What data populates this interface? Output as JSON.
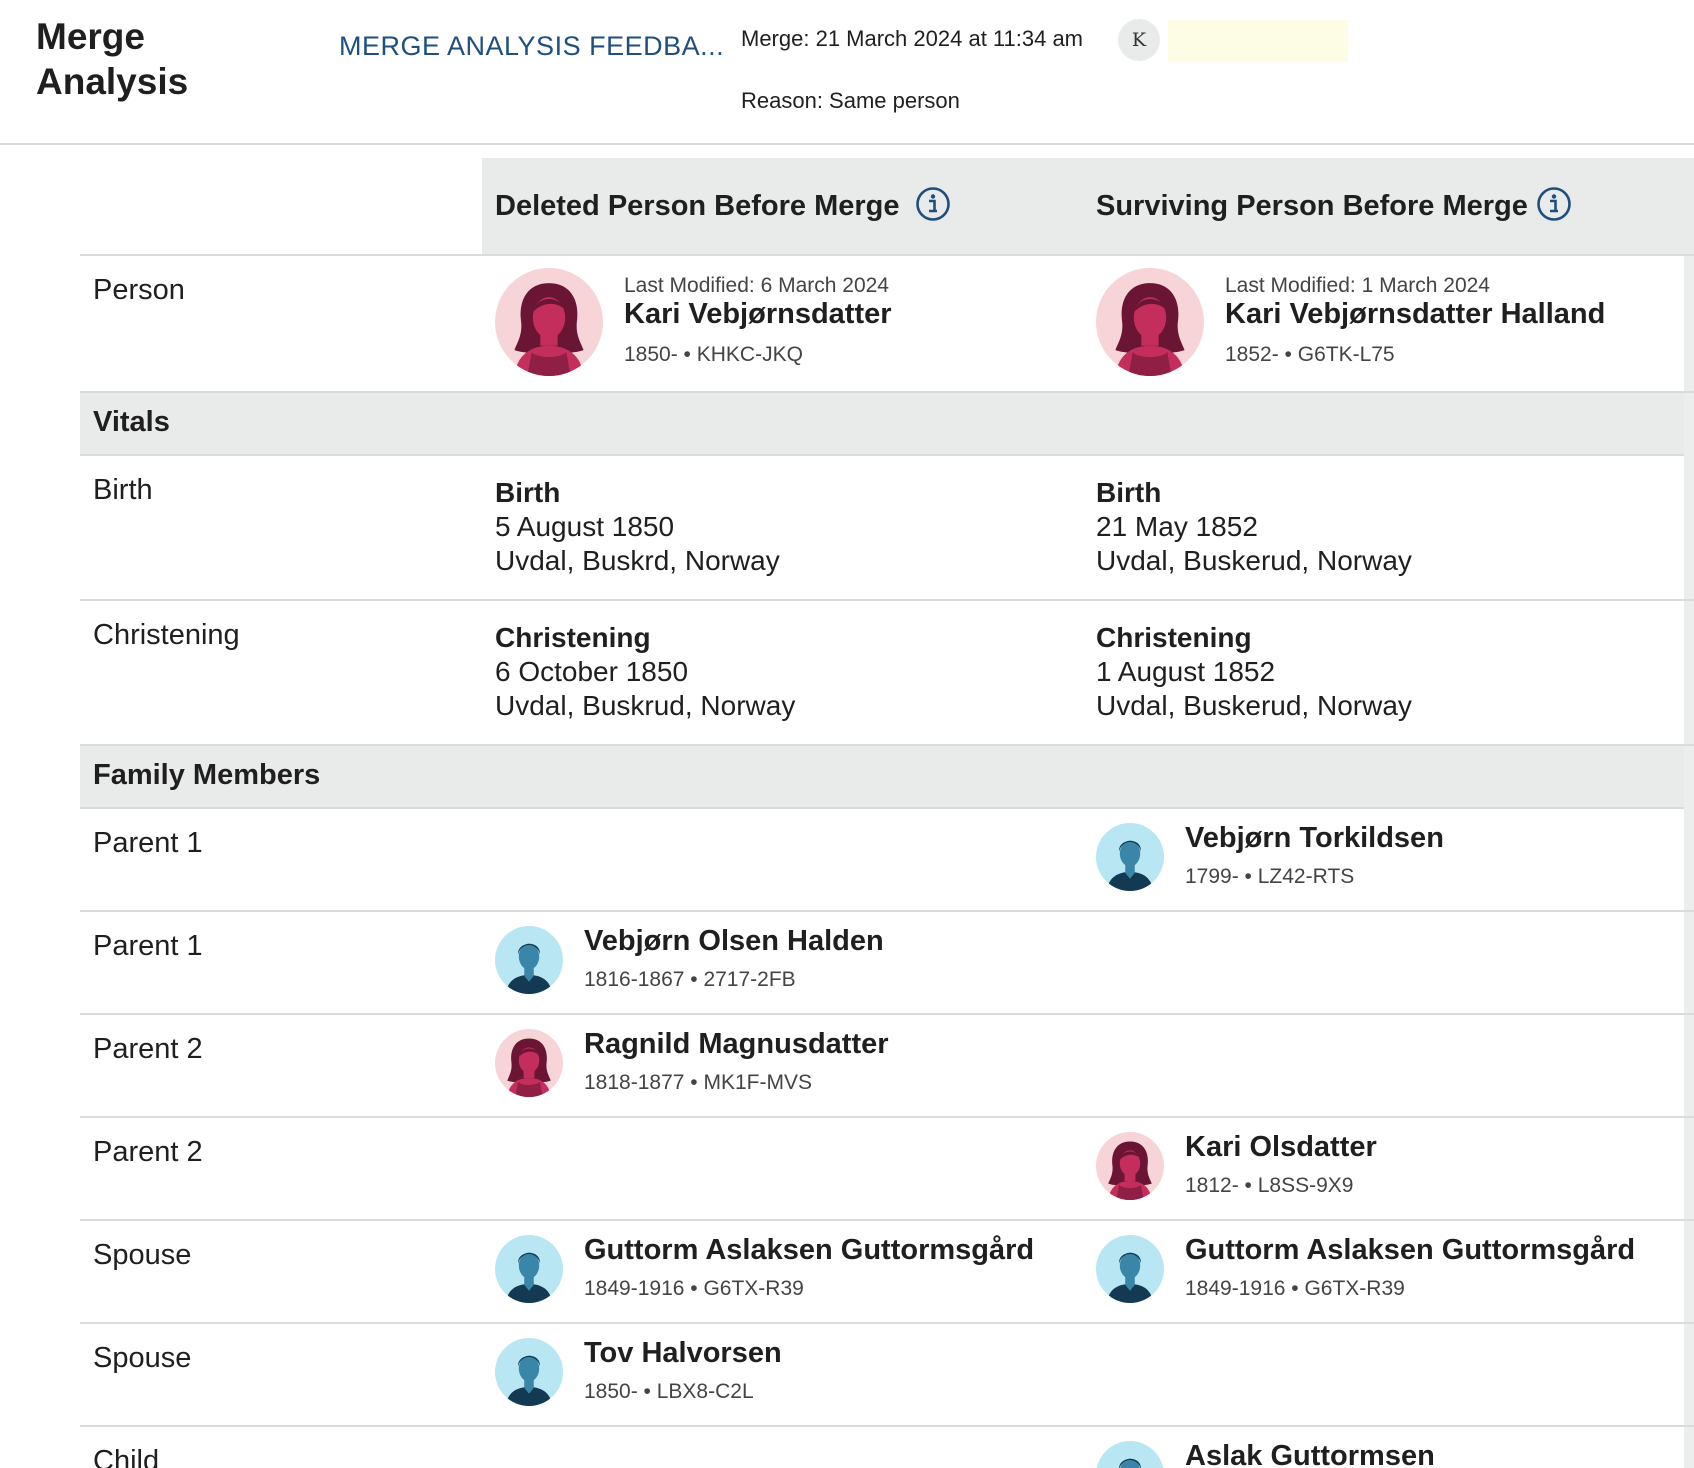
{
  "header": {
    "title_line1": "Merge",
    "title_line2": "Analysis",
    "feedback_link": "MERGE ANALYSIS FEEDBA...",
    "merge_date": "Merge: 21 March 2024 at 11:34 am",
    "merge_reason": "Reason: Same person",
    "user_initial": "K"
  },
  "columns": {
    "deleted_title": "Deleted Person Before Merge",
    "surviving_title": "Surviving Person Before Merge"
  },
  "person_row": {
    "label": "Person",
    "deleted": {
      "modified": "Last Modified: 6 March 2024",
      "name": "Kari Vebjørnsdatter",
      "meta": "1850- • KHKC-JKQ",
      "gender": "female"
    },
    "surviving": {
      "modified": "Last Modified: 1 March 2024",
      "name": "Kari Vebjørnsdatter Halland",
      "meta": "1852- • G6TK-L75",
      "gender": "female"
    }
  },
  "sections": {
    "vitals": "Vitals",
    "family": "Family Members"
  },
  "vitals": [
    {
      "label": "Birth",
      "deleted": {
        "type": "Birth",
        "date": "5 August 1850",
        "place": "Uvdal, Buskrd, Norway"
      },
      "surviving": {
        "type": "Birth",
        "date": "21 May 1852",
        "place": "Uvdal, Buskerud, Norway"
      }
    },
    {
      "label": "Christening",
      "deleted": {
        "type": "Christening",
        "date": "6 October 1850",
        "place": "Uvdal, Buskrud, Norway"
      },
      "surviving": {
        "type": "Christening",
        "date": "1 August 1852",
        "place": "Uvdal, Buskerud, Norway"
      }
    }
  ],
  "family": [
    {
      "label": "Parent 1",
      "surviving": {
        "name": "Vebjørn Torkildsen",
        "meta": "1799- • LZ42-RTS",
        "gender": "male"
      }
    },
    {
      "label": "Parent 1",
      "deleted": {
        "name": "Vebjørn Olsen Halden",
        "meta": "1816-1867 • 2717-2FB",
        "gender": "male"
      }
    },
    {
      "label": "Parent 2",
      "deleted": {
        "name": "Ragnild Magnusdatter",
        "meta": "1818-1877 • MK1F-MVS",
        "gender": "female"
      }
    },
    {
      "label": "Parent 2",
      "surviving": {
        "name": "Kari Olsdatter",
        "meta": "1812- • L8SS-9X9",
        "gender": "female"
      }
    },
    {
      "label": "Spouse",
      "deleted": {
        "name": "Guttorm Aslaksen Guttormsgård",
        "meta": "1849-1916 • G6TX-R39",
        "gender": "male"
      },
      "surviving": {
        "name": "Guttorm Aslaksen Guttormsgård",
        "meta": "1849-1916 • G6TX-R39",
        "gender": "male"
      }
    },
    {
      "label": "Spouse",
      "deleted": {
        "name": "Tov Halvorsen",
        "meta": "1850- • LBX8-C2L",
        "gender": "male"
      }
    },
    {
      "label": "Child",
      "surviving": {
        "name": "Aslak Guttormsen",
        "gender": "male"
      }
    }
  ],
  "colors": {
    "link": "#1e4f7f",
    "header_bg": "#e9eaea",
    "female_bg": "#f6d4d8",
    "male_bg": "#b8e7f3"
  }
}
